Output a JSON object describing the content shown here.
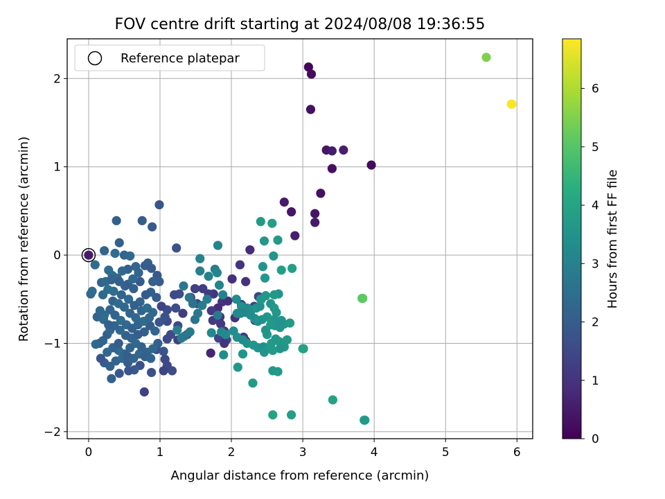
{
  "chart_data": {
    "type": "scatter",
    "title": "FOV centre drift starting at 2024/08/08 19:36:55",
    "xlabel": "Angular distance from reference (arcmin)",
    "ylabel": "Rotation from reference (arcmin)",
    "xlim": [
      -0.3,
      6.22
    ],
    "ylim": [
      -2.08,
      2.45
    ],
    "xticks": [
      "0",
      "1",
      "2",
      "3",
      "4",
      "5",
      "6"
    ],
    "xtick_values": [
      0,
      1,
      2,
      3,
      4,
      5,
      6
    ],
    "yticks": [
      "2",
      "1",
      "0",
      "−1",
      "−2"
    ],
    "ytick_values": [
      2,
      1,
      0,
      -1,
      -2
    ],
    "grid": true,
    "legend": {
      "position": "top-left",
      "entries": [
        "Reference platepar"
      ]
    },
    "reference_point": {
      "label": "Reference platepar",
      "x": 0,
      "y": 0
    },
    "colorbar": {
      "label": "Hours from first FF file",
      "colormap": "viridis",
      "range": [
        0,
        6.85
      ],
      "ticks": [
        "0",
        "1",
        "2",
        "3",
        "4",
        "5",
        "6"
      ],
      "tick_values": [
        0,
        1,
        2,
        3,
        4,
        5,
        6
      ]
    },
    "points": [
      [
        3.08,
        2.13,
        0.1
      ],
      [
        3.12,
        2.05,
        0.2
      ],
      [
        3.11,
        1.65,
        0.3
      ],
      [
        3.33,
        1.19,
        0.4
      ],
      [
        3.41,
        1.18,
        0.5
      ],
      [
        3.57,
        1.19,
        0.6
      ],
      [
        3.96,
        1.02,
        0.2
      ],
      [
        3.41,
        0.98,
        0.3
      ],
      [
        3.25,
        0.7,
        0.3
      ],
      [
        2.74,
        0.6,
        0.5
      ],
      [
        2.84,
        0.49,
        0.4
      ],
      [
        3.17,
        0.47,
        0.4
      ],
      [
        3.17,
        0.37,
        0.5
      ],
      [
        2.89,
        0.22,
        0.6
      ],
      [
        2.26,
        0.06,
        0.8
      ],
      [
        2.12,
        -0.11,
        1.0
      ],
      [
        2.2,
        -0.3,
        1.0
      ],
      [
        2.01,
        -0.27,
        0.9
      ],
      [
        1.75,
        -0.44,
        1.0
      ],
      [
        1.68,
        -0.44,
        1.2
      ],
      [
        1.87,
        -0.53,
        1.0
      ],
      [
        1.95,
        -0.52,
        0.9
      ],
      [
        1.81,
        -0.6,
        0.8
      ],
      [
        1.72,
        -0.63,
        1.1
      ],
      [
        1.84,
        -0.7,
        1.0
      ],
      [
        1.74,
        -0.74,
        1.2
      ],
      [
        1.85,
        -0.78,
        1.1
      ],
      [
        2.05,
        -0.71,
        1.0
      ],
      [
        2.14,
        -0.56,
        1.0
      ],
      [
        1.9,
        -0.86,
        1.2
      ],
      [
        1.93,
        -0.96,
        1.3
      ],
      [
        1.82,
        -0.94,
        1.4
      ],
      [
        1.9,
        -1.0,
        1.0
      ],
      [
        2.17,
        -0.93,
        1.1
      ],
      [
        2.2,
        -0.97,
        1.1
      ],
      [
        1.71,
        -1.11,
        0.7
      ],
      [
        2.33,
        -0.74,
        1.4
      ],
      [
        2.32,
        -0.58,
        1.3
      ],
      [
        2.38,
        -0.47,
        1.4
      ],
      [
        1.49,
        -0.38,
        1.3
      ],
      [
        1.6,
        -0.38,
        1.2
      ],
      [
        1.43,
        -0.48,
        1.3
      ],
      [
        1.52,
        -0.55,
        1.4
      ],
      [
        1.32,
        -0.66,
        1.2
      ],
      [
        1.25,
        -0.8,
        1.5
      ],
      [
        1.38,
        -0.9,
        1.4
      ],
      [
        1.25,
        -0.96,
        1.3
      ],
      [
        1.15,
        -0.9,
        1.6
      ],
      [
        1.1,
        -0.95,
        1.5
      ],
      [
        1.1,
        -0.75,
        1.5
      ],
      [
        1.1,
        -0.62,
        1.6
      ],
      [
        1.02,
        -0.58,
        1.4
      ],
      [
        1.07,
        -0.7,
        1.7
      ],
      [
        0.99,
        -0.76,
        1.8
      ],
      [
        1.27,
        -0.44,
        1.6
      ],
      [
        1.2,
        -0.45,
        1.5
      ],
      [
        1.22,
        -0.6,
        1.6
      ],
      [
        0.95,
        -1.07,
        1.7
      ],
      [
        1.05,
        -1.09,
        1.8
      ],
      [
        1.07,
        -1.18,
        1.5
      ],
      [
        1.17,
        -1.31,
        1.6
      ],
      [
        1.1,
        -1.25,
        1.5
      ],
      [
        1.05,
        -1.31,
        1.4
      ],
      [
        0.88,
        -1.33,
        1.7
      ],
      [
        0.78,
        -1.55,
        1.3
      ],
      [
        0.72,
        -1.25,
        1.7
      ],
      [
        0.64,
        -1.3,
        1.9
      ],
      [
        0.56,
        -1.31,
        1.8
      ],
      [
        0.55,
        -1.22,
        2.0
      ],
      [
        0.43,
        -1.34,
        1.9
      ],
      [
        0.32,
        -1.4,
        2.1
      ],
      [
        0.22,
        -1.22,
        2.0
      ],
      [
        0.17,
        -1.17,
        1.8
      ],
      [
        0.15,
        -1.0,
        2.0
      ],
      [
        0.1,
        -1.01,
        2.3
      ],
      [
        0.2,
        -0.97,
        2.2
      ],
      [
        0.26,
        -0.9,
        2.1
      ],
      [
        0.12,
        -0.7,
        2.2
      ],
      [
        0.21,
        -0.73,
        2.4
      ],
      [
        0.3,
        -0.85,
        2.3
      ],
      [
        0.3,
        -0.62,
        2.2
      ],
      [
        0.03,
        -0.44,
        2.3
      ],
      [
        0.05,
        -0.41,
        2.4
      ],
      [
        0.18,
        -0.31,
        2.2
      ],
      [
        0.24,
        -0.3,
        2.3
      ],
      [
        0.33,
        -0.23,
        2.4
      ],
      [
        0.4,
        -0.26,
        2.3
      ],
      [
        0.43,
        -0.3,
        2.1
      ],
      [
        0.51,
        -0.35,
        2.2
      ],
      [
        0.55,
        -0.33,
        2.0
      ],
      [
        0.63,
        -0.38,
        2.1
      ],
      [
        0.72,
        -0.3,
        1.9
      ],
      [
        0.79,
        -0.12,
        2.0
      ],
      [
        0.83,
        -0.09,
        2.1
      ],
      [
        0.88,
        -0.15,
        1.9
      ],
      [
        0.96,
        -0.23,
        1.9
      ],
      [
        0.99,
        -0.3,
        2.0
      ],
      [
        0.9,
        -0.3,
        2.1
      ],
      [
        0.87,
        -0.42,
        2.1
      ],
      [
        0.95,
        -0.48,
        2.0
      ],
      [
        0.8,
        -0.45,
        1.9
      ],
      [
        0.72,
        -0.53,
        2.2
      ],
      [
        0.64,
        -0.57,
        2.1
      ],
      [
        0.56,
        -0.5,
        2.3
      ],
      [
        0.46,
        -0.45,
        2.2
      ],
      [
        0.35,
        -0.41,
        2.4
      ],
      [
        0.27,
        -0.39,
        2.5
      ],
      [
        0.2,
        -0.45,
        2.3
      ],
      [
        0.34,
        -0.52,
        2.2
      ],
      [
        0.42,
        -0.55,
        2.4
      ],
      [
        0.5,
        -0.59,
        2.3
      ],
      [
        0.58,
        -0.66,
        2.2
      ],
      [
        0.66,
        -0.71,
        2.3
      ],
      [
        0.74,
        -0.63,
        2.2
      ],
      [
        0.82,
        -0.6,
        2.4
      ],
      [
        0.9,
        -0.65,
        2.3
      ],
      [
        0.86,
        -0.8,
        2.0
      ],
      [
        0.78,
        -0.87,
        2.1
      ],
      [
        0.69,
        -0.9,
        2.0
      ],
      [
        0.6,
        -0.94,
        2.2
      ],
      [
        0.52,
        -0.91,
        2.1
      ],
      [
        0.44,
        -0.85,
        2.3
      ],
      [
        0.36,
        -0.8,
        2.2
      ],
      [
        0.28,
        -0.79,
        2.1
      ],
      [
        0.22,
        -0.68,
        2.4
      ],
      [
        0.16,
        -0.63,
        2.3
      ],
      [
        0.37,
        -0.68,
        2.2
      ],
      [
        0.45,
        -0.74,
        2.4
      ],
      [
        0.53,
        -0.79,
        2.3
      ],
      [
        0.61,
        -0.83,
        2.1
      ],
      [
        0.69,
        -0.79,
        2.2
      ],
      [
        0.77,
        -0.75,
        2.4
      ],
      [
        0.85,
        -0.71,
        2.3
      ],
      [
        0.93,
        -0.86,
        2.2
      ],
      [
        0.97,
        -1.0,
        2.1
      ],
      [
        0.9,
        -1.06,
        2.3
      ],
      [
        0.82,
        -1.1,
        2.2
      ],
      [
        0.74,
        -1.04,
        2.1
      ],
      [
        0.66,
        -1.0,
        2.3
      ],
      [
        0.58,
        -1.05,
        2.2
      ],
      [
        0.5,
        -1.12,
        2.1
      ],
      [
        0.42,
        -1.08,
        2.4
      ],
      [
        0.34,
        -1.05,
        2.2
      ],
      [
        0.26,
        -1.1,
        2.3
      ],
      [
        0.3,
        -1.26,
        2.1
      ],
      [
        0.38,
        -1.2,
        2.2
      ],
      [
        0.47,
        -1.17,
        2.3
      ],
      [
        0.55,
        -1.15,
        2.0
      ],
      [
        0.63,
        -1.17,
        2.2
      ],
      [
        0.71,
        -1.12,
        2.3
      ],
      [
        0.79,
        -1.15,
        2.1
      ],
      [
        0.87,
        -1.17,
        2.2
      ],
      [
        0.42,
        -1.0,
        2.0
      ],
      [
        0.09,
        -0.11,
        2.4
      ],
      [
        0.22,
        0.05,
        2.2
      ],
      [
        0.37,
        0.02,
        2.4
      ],
      [
        0.43,
        0.14,
        2.1
      ],
      [
        0.5,
        0.0,
        2.2
      ],
      [
        0.58,
        -0.01,
        2.3
      ],
      [
        0.66,
        -0.13,
        2.2
      ],
      [
        0.55,
        -0.16,
        2.1
      ],
      [
        0.47,
        -0.18,
        2.3
      ],
      [
        0.39,
        0.39,
        2.1
      ],
      [
        0.75,
        0.39,
        2.0
      ],
      [
        0.89,
        0.32,
        1.9
      ],
      [
        0.99,
        0.57,
        1.8
      ],
      [
        1.23,
        0.08,
        1.7
      ],
      [
        0.28,
        -0.17,
        2.4
      ],
      [
        0.62,
        -0.27,
        2.3
      ],
      [
        0.7,
        -0.2,
        2.2
      ],
      [
        0.32,
        -0.28,
        2.2
      ],
      [
        1.41,
        -0.48,
        2.7
      ],
      [
        1.46,
        -0.55,
        2.6
      ],
      [
        1.33,
        -0.35,
        2.7
      ],
      [
        1.49,
        -0.73,
        2.6
      ],
      [
        1.53,
        -0.66,
        2.7
      ],
      [
        1.59,
        -0.57,
        2.8
      ],
      [
        1.66,
        -0.5,
        2.9
      ],
      [
        1.56,
        -0.18,
        2.9
      ],
      [
        1.56,
        -0.04,
        3.0
      ],
      [
        1.68,
        -0.24,
        3.0
      ],
      [
        1.77,
        -0.16,
        2.9
      ],
      [
        1.8,
        -0.2,
        3.1
      ],
      [
        1.81,
        0.11,
        3.0
      ],
      [
        1.83,
        -0.34,
        3.1
      ],
      [
        1.88,
        -0.45,
        3.0
      ],
      [
        1.81,
        -0.68,
        2.8
      ],
      [
        1.72,
        -0.88,
        3.2
      ],
      [
        1.86,
        -0.87,
        3.1
      ],
      [
        1.92,
        -0.9,
        3.2
      ],
      [
        1.89,
        -1.13,
        3.3
      ],
      [
        1.24,
        -0.85,
        2.9
      ],
      [
        1.3,
        -0.94,
        2.8
      ],
      [
        1.34,
        -0.92,
        2.7
      ],
      [
        1.42,
        -0.87,
        2.8
      ],
      [
        2.07,
        -0.5,
        3.3
      ],
      [
        2.14,
        -0.58,
        3.4
      ],
      [
        2.22,
        -0.6,
        3.3
      ],
      [
        2.28,
        -0.62,
        3.4
      ],
      [
        2.35,
        -0.6,
        3.5
      ],
      [
        2.4,
        -0.58,
        3.4
      ],
      [
        2.42,
        -0.5,
        3.5
      ],
      [
        2.48,
        -0.46,
        3.6
      ],
      [
        2.55,
        -0.55,
        3.5
      ],
      [
        2.6,
        -0.6,
        3.6
      ],
      [
        2.66,
        -0.44,
        3.5
      ],
      [
        2.63,
        -0.65,
        3.6
      ],
      [
        2.6,
        -0.73,
        3.5
      ],
      [
        2.5,
        -0.7,
        3.6
      ],
      [
        2.43,
        -0.73,
        3.5
      ],
      [
        2.37,
        -0.75,
        3.4
      ],
      [
        2.33,
        -0.72,
        3.5
      ],
      [
        2.27,
        -0.68,
        3.3
      ],
      [
        2.2,
        -0.65,
        3.2
      ],
      [
        2.13,
        -0.66,
        3.1
      ],
      [
        2.08,
        -0.66,
        3.2
      ],
      [
        2.03,
        -0.86,
        3.3
      ],
      [
        2.08,
        -0.93,
        3.4
      ],
      [
        2.16,
        -0.96,
        3.3
      ],
      [
        2.22,
        -1.0,
        3.4
      ],
      [
        2.31,
        -1.02,
        3.5
      ],
      [
        2.37,
        -1.05,
        3.5
      ],
      [
        2.45,
        -1.04,
        3.4
      ],
      [
        2.52,
        -1.06,
        3.6
      ],
      [
        2.56,
        -1.0,
        3.7
      ],
      [
        2.62,
        -0.95,
        3.6
      ],
      [
        2.67,
        -0.98,
        3.7
      ],
      [
        2.73,
        -1.01,
        3.6
      ],
      [
        2.78,
        -0.96,
        3.7
      ],
      [
        2.74,
        -1.04,
        3.6
      ],
      [
        2.68,
        -1.06,
        3.5
      ],
      [
        2.58,
        -1.08,
        3.7
      ],
      [
        2.5,
        -0.9,
        3.6
      ],
      [
        2.48,
        -0.85,
        3.5
      ],
      [
        2.55,
        -0.79,
        3.7
      ],
      [
        2.61,
        -0.8,
        3.6
      ],
      [
        2.68,
        -0.82,
        3.5
      ],
      [
        2.74,
        -0.78,
        3.6
      ],
      [
        2.82,
        -0.77,
        3.7
      ],
      [
        2.7,
        -0.74,
        3.5
      ],
      [
        2.16,
        -1.12,
        3.5
      ],
      [
        2.09,
        -1.27,
        3.6
      ],
      [
        2.3,
        -1.45,
        3.7
      ],
      [
        2.46,
        -1.1,
        3.5
      ],
      [
        2.58,
        -1.31,
        3.6
      ],
      [
        2.65,
        -1.32,
        3.7
      ],
      [
        3.01,
        -1.06,
        3.8
      ],
      [
        3.0,
        -1.06,
        3.9
      ],
      [
        2.58,
        -1.81,
        3.9
      ],
      [
        2.84,
        -1.81,
        3.8
      ],
      [
        3.42,
        -1.64,
        3.9
      ],
      [
        3.86,
        -1.87,
        3.6
      ],
      [
        3.87,
        -1.87,
        3.7
      ],
      [
        2.44,
        -0.13,
        3.5
      ],
      [
        2.47,
        -0.26,
        3.6
      ],
      [
        2.41,
        0.38,
        3.7
      ],
      [
        2.46,
        0.16,
        3.6
      ],
      [
        2.57,
        0.36,
        3.8
      ],
      [
        2.59,
        -0.01,
        3.6
      ],
      [
        2.65,
        0.17,
        3.7
      ],
      [
        2.7,
        -0.17,
        3.8
      ],
      [
        2.85,
        -0.15,
        3.8
      ],
      [
        2.6,
        -0.45,
        3.7
      ],
      [
        2.41,
        -0.5,
        3.6
      ],
      [
        3.83,
        -0.49,
        5.0
      ],
      [
        3.84,
        -0.49,
        5.1
      ],
      [
        5.57,
        2.24,
        5.5
      ],
      [
        5.92,
        1.71,
        6.85
      ],
      [
        5.93,
        1.71,
        6.8
      ]
    ]
  }
}
